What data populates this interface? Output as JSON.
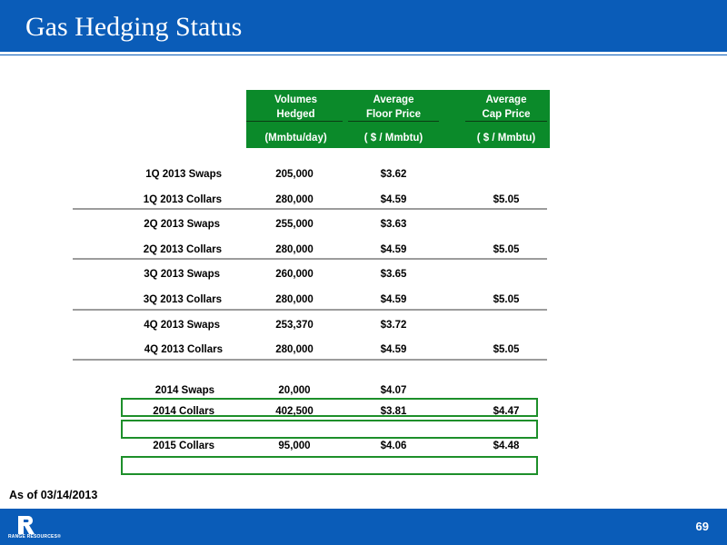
{
  "header": {
    "title": "Gas Hedging Status"
  },
  "table": {
    "columns": [
      {
        "line1": "Volumes",
        "line2": "Hedged",
        "unit": "(Mmbtu/day)"
      },
      {
        "line1": "Average",
        "line2": "Floor Price",
        "unit": "( $ / Mmbtu)"
      },
      {
        "line1": "Average",
        "line2": "Cap Price",
        "unit": "( $ / Mmbtu)"
      }
    ],
    "rows": [
      {
        "label": "1Q 2013 Swaps",
        "volume": "205,000",
        "floor": "$3.62",
        "cap": ""
      },
      {
        "label": "1Q 2013 Collars",
        "volume": "280,000",
        "floor": "$4.59",
        "cap": "$5.05"
      },
      {
        "label": "2Q 2013 Swaps",
        "volume": "255,000",
        "floor": "$3.63",
        "cap": ""
      },
      {
        "label": "2Q 2013 Collars",
        "volume": "280,000",
        "floor": "$4.59",
        "cap": "$5.05"
      },
      {
        "label": "3Q 2013 Swaps",
        "volume": "260,000",
        "floor": "$3.65",
        "cap": ""
      },
      {
        "label": "3Q 2013 Collars",
        "volume": "280,000",
        "floor": "$4.59",
        "cap": "$5.05"
      },
      {
        "label": "4Q 2013 Swaps",
        "volume": "253,370",
        "floor": "$3.72",
        "cap": ""
      },
      {
        "label": "4Q 2013 Collars",
        "volume": "280,000",
        "floor": "$4.59",
        "cap": "$5.05"
      },
      {
        "label": "2014 Swaps",
        "volume": "20,000",
        "floor": "$4.07",
        "cap": ""
      },
      {
        "label": "2014 Collars",
        "volume": "402,500",
        "floor": "$3.81",
        "cap": "$4.47"
      },
      {
        "label": "2015 Collars",
        "volume": "95,000",
        "floor": "$4.06",
        "cap": "$4.48"
      }
    ]
  },
  "footnote": "As of 03/14/2013",
  "footer": {
    "page_number": "69",
    "logo_text": "RANGE RESOURCES®"
  },
  "colors": {
    "brand_blue": "#0a5cb8",
    "header_green": "#0b8a2a",
    "highlight_green": "#1d8f2a"
  }
}
